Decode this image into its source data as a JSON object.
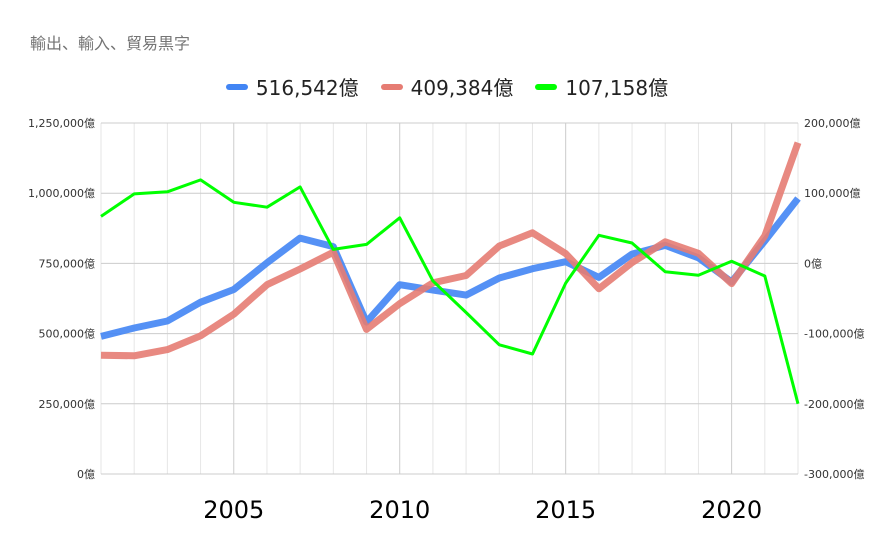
{
  "title": "輸出、輸入、貿易黒字",
  "chart_data": {
    "type": "line",
    "title": "輸出、輸入、貿易黒字",
    "x": [
      2001,
      2002,
      2003,
      2004,
      2005,
      2006,
      2007,
      2008,
      2009,
      2010,
      2011,
      2012,
      2013,
      2014,
      2015,
      2016,
      2017,
      2018,
      2019,
      2020,
      2021,
      2022
    ],
    "x_ticks": [
      "2005",
      "2010",
      "2015",
      "2020"
    ],
    "x_tick_values": [
      2005,
      2010,
      2015,
      2020
    ],
    "left_axis": {
      "ylim": [
        0,
        1250000
      ],
      "ticks": [
        "0億",
        "250,000億",
        "500,000億",
        "750,000億",
        "1,000,000億",
        "1,250,000億"
      ],
      "tick_values": [
        0,
        250000,
        500000,
        750000,
        1000000,
        1250000
      ]
    },
    "right_axis": {
      "ylim": [
        -300000,
        200000
      ],
      "ticks": [
        "-300,000億",
        "-200,000億",
        "-100,000億",
        "0億",
        "100,000億",
        "200,000億"
      ],
      "tick_values": [
        -300000,
        -200000,
        -100000,
        0,
        100000,
        200000
      ]
    },
    "grid": true,
    "legend_position": "top",
    "series": [
      {
        "name": "516,542億",
        "color": "#4285f4",
        "axis": "left",
        "values": [
          490000,
          520000,
          545000,
          612000,
          657000,
          752000,
          840000,
          810000,
          541000,
          674000,
          655000,
          637000,
          698000,
          731000,
          756000,
          700000,
          783000,
          814000,
          770000,
          684000,
          830000,
          981000
        ]
      },
      {
        "name": "409,384億",
        "color": "#e67c73",
        "axis": "left",
        "values": [
          423000,
          421000,
          443000,
          492000,
          569000,
          674000,
          730000,
          790000,
          515000,
          607000,
          681000,
          707000,
          812000,
          859000,
          785000,
          660000,
          753000,
          827000,
          786000,
          678000,
          848000,
          1180000
        ]
      },
      {
        "name": "107,158億",
        "color": "#00ff00",
        "axis": "right",
        "values": [
          67000,
          99000,
          102000,
          119000,
          87000,
          80000,
          109000,
          20000,
          27000,
          65000,
          -25000,
          -70000,
          -116000,
          -129000,
          -28000,
          40000,
          29000,
          -12000,
          -17000,
          3000,
          -18000,
          -200000
        ]
      }
    ]
  }
}
